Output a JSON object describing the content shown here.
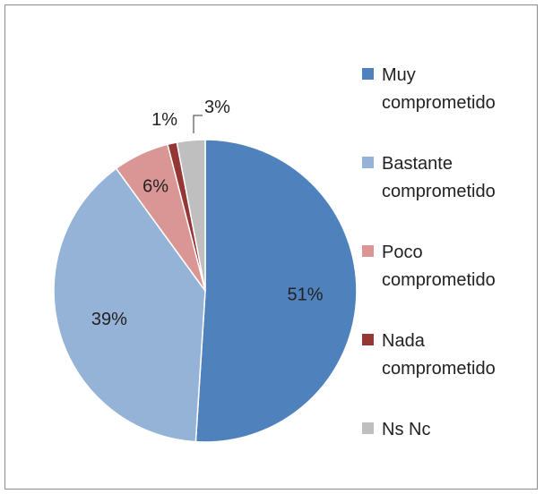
{
  "chart_data": {
    "type": "pie",
    "title": "",
    "categories": [
      "Muy comprometido",
      "Bastante comprometido",
      "Poco comprometido",
      "Nada comprometido",
      "Ns Nc"
    ],
    "values": [
      51,
      39,
      6,
      1,
      3
    ],
    "data_labels": [
      "51%",
      "39%",
      "6%",
      "1%",
      "3%"
    ],
    "colors": [
      "#4f81bd",
      "#95b3d7",
      "#da9694",
      "#953735",
      "#bfbfbf"
    ],
    "legend": {
      "placement": "right",
      "entries": [
        {
          "line1": "Muy",
          "line2": "comprometido"
        },
        {
          "line1": "Bastante",
          "line2": "comprometido"
        },
        {
          "line1": "Poco",
          "line2": "comprometido"
        },
        {
          "line1": "Nada",
          "line2": "comprometido"
        },
        {
          "line1": "Ns Nc",
          "line2": ""
        }
      ]
    }
  }
}
